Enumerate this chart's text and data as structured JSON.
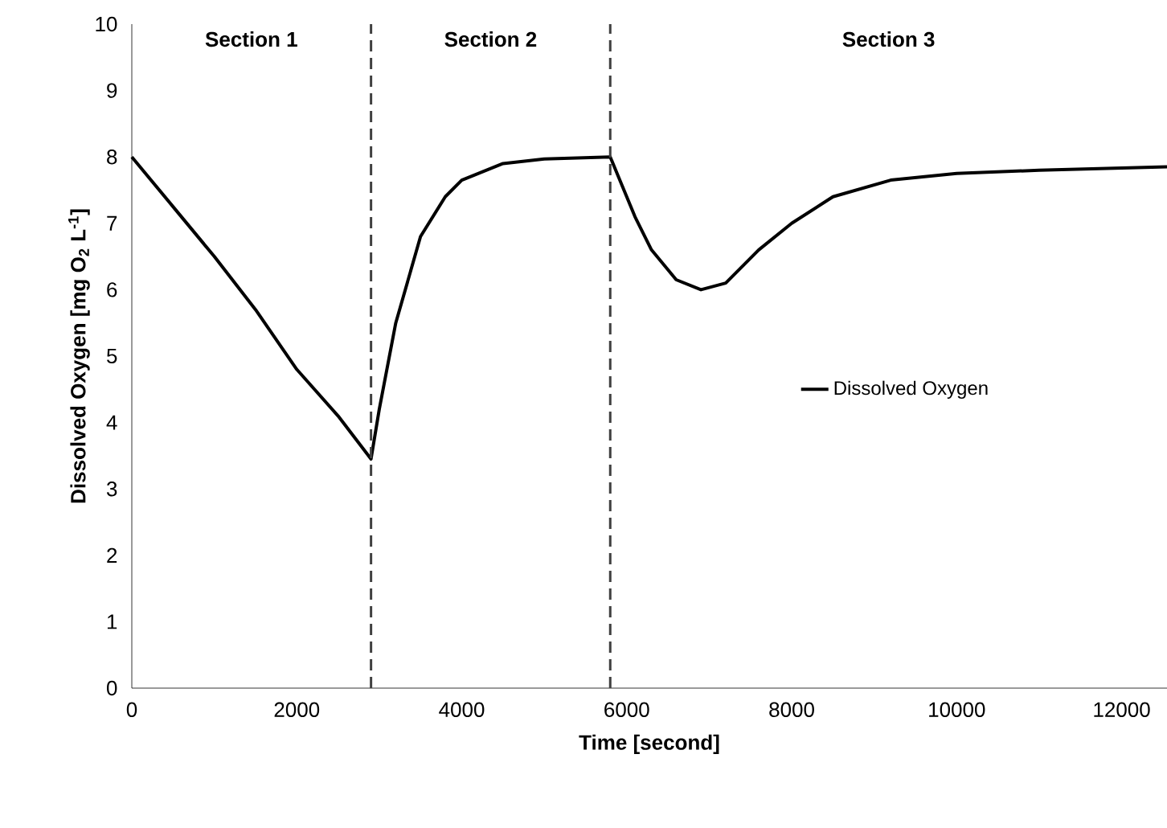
{
  "chart_data": {
    "type": "line",
    "xlabel": "Time [second]",
    "ylabel": "Dissolved Oxygen [mg O$_{2}$ L$^{-1}$]",
    "xlim": [
      0,
      12550
    ],
    "ylim": [
      0,
      10
    ],
    "xticks": [
      0,
      2000,
      4000,
      6000,
      8000,
      10000,
      12000
    ],
    "yticks": [
      0,
      1,
      2,
      3,
      4,
      5,
      6,
      7,
      8,
      9,
      10
    ],
    "grid": false,
    "legend": "right",
    "marker": "none",
    "line_style": "solid",
    "series": [
      {
        "name": "Dissolved Oxygen",
        "color": "#000000",
        "x": [
          0,
          500,
          1000,
          1500,
          2000,
          2500,
          2900,
          3000,
          3200,
          3500,
          3800,
          4000,
          4500,
          5000,
          5800,
          5900,
          6100,
          6300,
          6600,
          6900,
          7200,
          7600,
          8000,
          8500,
          9200,
          10000,
          11000,
          12550
        ],
        "values": [
          8.0,
          7.25,
          6.5,
          5.7,
          4.8,
          4.1,
          3.45,
          4.2,
          5.5,
          6.8,
          7.4,
          7.65,
          7.9,
          7.97,
          8.0,
          7.7,
          7.1,
          6.6,
          6.15,
          6.0,
          6.1,
          6.6,
          7.0,
          7.4,
          7.65,
          7.75,
          7.8,
          7.85
        ]
      }
    ],
    "ref_lines": [
      {
        "axis": "x",
        "value": 2900,
        "color": "#404040",
        "line_style": "dashed"
      },
      {
        "axis": "x",
        "value": 5800,
        "color": "#404040",
        "line_style": "dashed"
      }
    ],
    "annotations": [
      "Section 1",
      "Section 2",
      "Section 3"
    ]
  }
}
